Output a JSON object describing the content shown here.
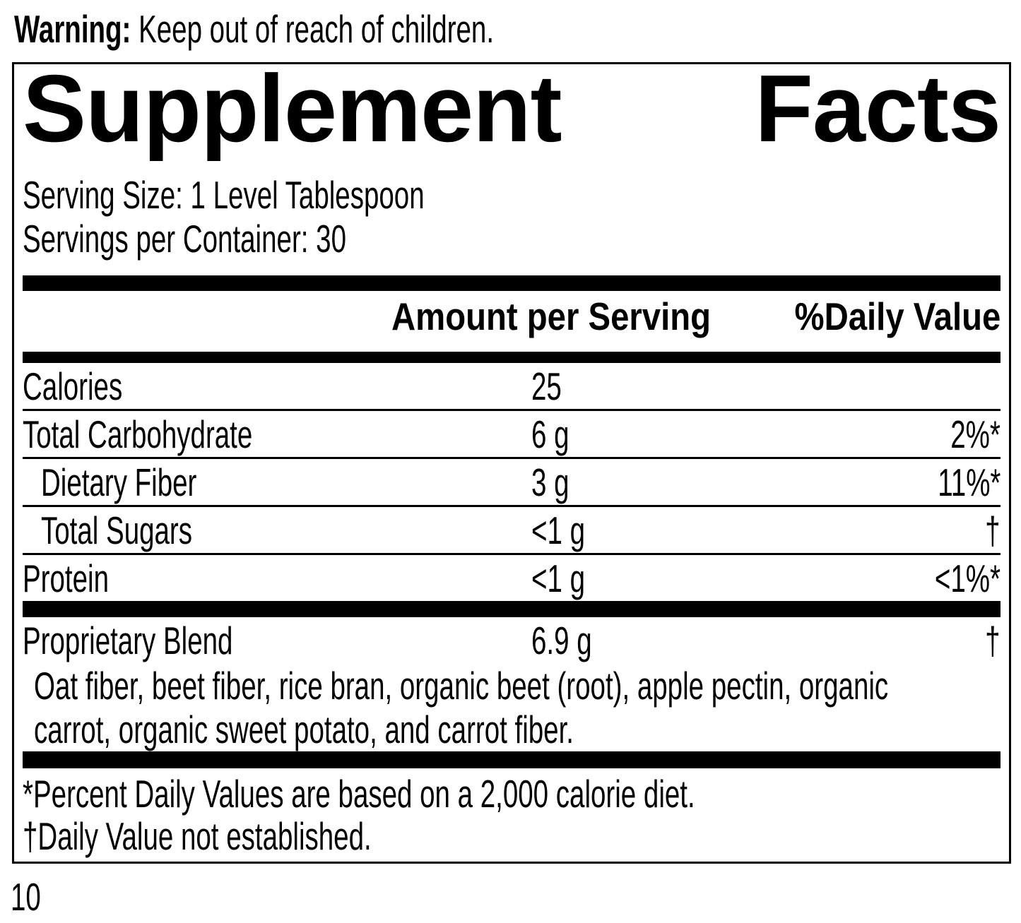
{
  "colors": {
    "ink": "#000000",
    "paper": "#ffffff"
  },
  "warning": {
    "label": "Warning:",
    "text": "Keep out of reach of children."
  },
  "panel": {
    "title": {
      "word1": "Supplement",
      "word2": "Facts"
    },
    "serving_size": "Serving Size: 1 Level Tablespoon",
    "servings_per_container": "Servings per Container: 30",
    "columns": {
      "amount": "Amount per Serving",
      "daily_value": "%Daily Value"
    },
    "rows": [
      {
        "name": "Calories",
        "amount": "25",
        "dv": ""
      },
      {
        "name": "Total Carbohydrate",
        "amount": "6 g",
        "dv": "2%*"
      },
      {
        "name": "Dietary Fiber",
        "amount": "3 g",
        "dv": "11%*",
        "indent": true
      },
      {
        "name": "Total Sugars",
        "amount": "<1 g",
        "dv": "†",
        "indent": true
      },
      {
        "name": "Protein",
        "amount": "<1 g",
        "dv": "<1%*"
      }
    ],
    "blend": {
      "name": "Proprietary Blend",
      "amount": "6.9 g",
      "dv": "†",
      "ingredients_lines": [
        "Oat fiber, beet fiber, rice bran, organic beet (root), apple pectin, organic",
        "carrot, organic sweet potato, and carrot fiber."
      ]
    },
    "footnotes": [
      "*Percent Daily Values are based on a 2,000 calorie diet.",
      "†Daily Value not established."
    ]
  },
  "page_number": "10"
}
